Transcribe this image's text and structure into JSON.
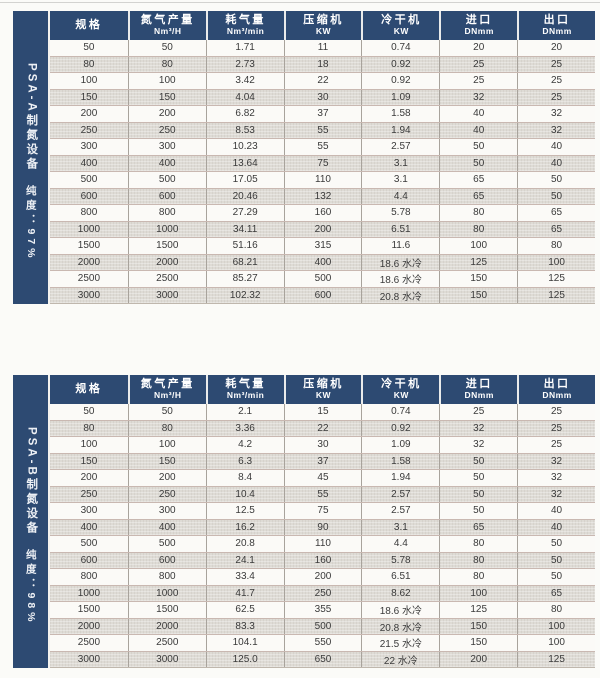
{
  "colors": {
    "header_navy": "#2d4a72",
    "row_white": "#fbfaf7",
    "row_alt_gray": "#dedbd5",
    "row_divider": "#c9b8b1",
    "header_text": "#ffffff"
  },
  "tables": [
    {
      "sidebar": {
        "title": "PSA-A制氮设备",
        "purity": "纯度：97%"
      },
      "columns": [
        {
          "label": "规格",
          "unit": ""
        },
        {
          "label": "氮气产量",
          "unit": "Nm³/H"
        },
        {
          "label": "耗气量",
          "unit": "Nm³/min"
        },
        {
          "label": "压缩机",
          "unit": "KW"
        },
        {
          "label": "冷干机",
          "unit": "KW"
        },
        {
          "label": "进口",
          "unit": "DNmm"
        },
        {
          "label": "出口",
          "unit": "DNmm"
        }
      ],
      "rows": [
        [
          "50",
          "50",
          "1.71",
          "11",
          "0.74",
          "20",
          "20"
        ],
        [
          "80",
          "80",
          "2.73",
          "18",
          "0.92",
          "25",
          "25"
        ],
        [
          "100",
          "100",
          "3.42",
          "22",
          "0.92",
          "25",
          "25"
        ],
        [
          "150",
          "150",
          "4.04",
          "30",
          "1.09",
          "32",
          "25"
        ],
        [
          "200",
          "200",
          "6.82",
          "37",
          "1.58",
          "40",
          "32"
        ],
        [
          "250",
          "250",
          "8.53",
          "55",
          "1.94",
          "40",
          "32"
        ],
        [
          "300",
          "300",
          "10.23",
          "55",
          "2.57",
          "50",
          "40"
        ],
        [
          "400",
          "400",
          "13.64",
          "75",
          "3.1",
          "50",
          "40"
        ],
        [
          "500",
          "500",
          "17.05",
          "110",
          "3.1",
          "65",
          "50"
        ],
        [
          "600",
          "600",
          "20.46",
          "132",
          "4.4",
          "65",
          "50"
        ],
        [
          "800",
          "800",
          "27.29",
          "160",
          "5.78",
          "80",
          "65"
        ],
        [
          "1000",
          "1000",
          "34.11",
          "200",
          "6.51",
          "80",
          "65"
        ],
        [
          "1500",
          "1500",
          "51.16",
          "315",
          "11.6",
          "100",
          "80"
        ],
        [
          "2000",
          "2000",
          "68.21",
          "400",
          "18.6 水冷",
          "125",
          "100"
        ],
        [
          "2500",
          "2500",
          "85.27",
          "500",
          "18.6 水冷",
          "150",
          "125"
        ],
        [
          "3000",
          "3000",
          "102.32",
          "600",
          "20.8 水冷",
          "150",
          "125"
        ]
      ]
    },
    {
      "sidebar": {
        "title": "PSA-B制氮设备",
        "purity": "纯度：98%"
      },
      "columns": [
        {
          "label": "规格",
          "unit": ""
        },
        {
          "label": "氮气产量",
          "unit": "Nm³/H"
        },
        {
          "label": "耗气量",
          "unit": "Nm³/min"
        },
        {
          "label": "压缩机",
          "unit": "KW"
        },
        {
          "label": "冷干机",
          "unit": "KW"
        },
        {
          "label": "进口",
          "unit": "DNmm"
        },
        {
          "label": "出口",
          "unit": "DNmm"
        }
      ],
      "rows": [
        [
          "50",
          "50",
          "2.1",
          "15",
          "0.74",
          "25",
          "25"
        ],
        [
          "80",
          "80",
          "3.36",
          "22",
          "0.92",
          "32",
          "25"
        ],
        [
          "100",
          "100",
          "4.2",
          "30",
          "1.09",
          "32",
          "25"
        ],
        [
          "150",
          "150",
          "6.3",
          "37",
          "1.58",
          "50",
          "32"
        ],
        [
          "200",
          "200",
          "8.4",
          "45",
          "1.94",
          "50",
          "32"
        ],
        [
          "250",
          "250",
          "10.4",
          "55",
          "2.57",
          "50",
          "32"
        ],
        [
          "300",
          "300",
          "12.5",
          "75",
          "2.57",
          "50",
          "40"
        ],
        [
          "400",
          "400",
          "16.2",
          "90",
          "3.1",
          "65",
          "40"
        ],
        [
          "500",
          "500",
          "20.8",
          "110",
          "4.4",
          "80",
          "50"
        ],
        [
          "600",
          "600",
          "24.1",
          "160",
          "5.78",
          "80",
          "50"
        ],
        [
          "800",
          "800",
          "33.4",
          "200",
          "6.51",
          "80",
          "50"
        ],
        [
          "1000",
          "1000",
          "41.7",
          "250",
          "8.62",
          "100",
          "65"
        ],
        [
          "1500",
          "1500",
          "62.5",
          "355",
          "18.6 水冷",
          "125",
          "80"
        ],
        [
          "2000",
          "2000",
          "83.3",
          "500",
          "20.8 水冷",
          "150",
          "100"
        ],
        [
          "2500",
          "2500",
          "104.1",
          "550",
          "21.5 水冷",
          "150",
          "100"
        ],
        [
          "3000",
          "3000",
          "125.0",
          "650",
          "22 水冷",
          "200",
          "125"
        ]
      ]
    }
  ]
}
